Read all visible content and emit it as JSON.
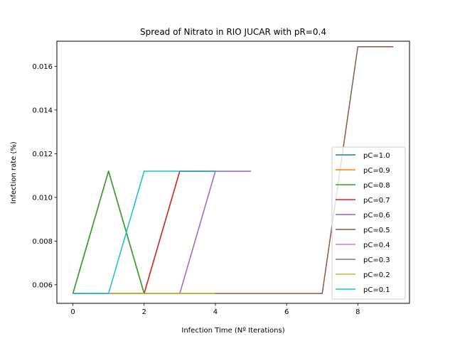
{
  "chart_data": {
    "type": "line",
    "title": "Spread of Nitrato in RIO JUCAR with pR=0.4",
    "xlabel": "Infection Time (Nº Iterations)",
    "ylabel": "Infection rate (%)",
    "xlim": [
      -0.45,
      9.45
    ],
    "ylim": [
      0.00515,
      0.01715
    ],
    "xticks": [
      0,
      2,
      4,
      6,
      8
    ],
    "yticks": [
      0.006,
      0.008,
      0.01,
      0.012,
      0.014,
      0.016
    ],
    "ytick_labels": [
      "0.006",
      "0.008",
      "0.010",
      "0.012",
      "0.014",
      "0.016"
    ],
    "grid": false,
    "legend_position": "lower-right",
    "series": [
      {
        "name": "pC=1.0",
        "color": "#1f77b4",
        "x": [
          0,
          1,
          2,
          3,
          4
        ],
        "y": [
          0.0056,
          0.0112,
          0.0056,
          0.0112,
          0.0112
        ]
      },
      {
        "name": "pC=0.9",
        "color": "#ff7f0e",
        "x": [
          0,
          1,
          2,
          3,
          4
        ],
        "y": [
          0.0056,
          0.0112,
          0.0056,
          0.0112,
          0.0112
        ]
      },
      {
        "name": "pC=0.8",
        "color": "#2ca02c",
        "x": [
          0,
          1,
          2
        ],
        "y": [
          0.0056,
          0.0112,
          0.0056
        ]
      },
      {
        "name": "pC=0.7",
        "color": "#d62728",
        "x": [
          0,
          1,
          2,
          3,
          4
        ],
        "y": [
          0.0056,
          0.0056,
          0.0056,
          0.0112,
          0.0112
        ]
      },
      {
        "name": "pC=0.6",
        "color": "#9467bd",
        "x": [
          0,
          1,
          2,
          3,
          4,
          5
        ],
        "y": [
          0.0056,
          0.0056,
          0.0056,
          0.0056,
          0.0112,
          0.0112
        ]
      },
      {
        "name": "pC=0.5",
        "color": "#8c564b",
        "x": [
          0,
          1,
          2,
          3,
          4,
          5,
          6,
          7,
          8,
          9
        ],
        "y": [
          0.0056,
          0.0056,
          0.0056,
          0.0056,
          0.0056,
          0.0056,
          0.0056,
          0.0056,
          0.0169,
          0.0169
        ]
      },
      {
        "name": "pC=0.4",
        "color": "#e377c2",
        "x": [
          0,
          1,
          2,
          3,
          4
        ],
        "y": [
          0.0056,
          0.0056,
          0.0056,
          0.0056,
          0.0056
        ]
      },
      {
        "name": "pC=0.3",
        "color": "#7f7f7f",
        "x": [
          0,
          1,
          2,
          3,
          4
        ],
        "y": [
          0.0056,
          0.0056,
          0.0056,
          0.0056,
          0.0056
        ]
      },
      {
        "name": "pC=0.2",
        "color": "#bcbd22",
        "x": [
          0,
          1,
          2,
          3,
          4
        ],
        "y": [
          0.0056,
          0.0056,
          0.0056,
          0.0056,
          0.0056
        ]
      },
      {
        "name": "pC=0.1",
        "color": "#17becf",
        "x": [
          0,
          1,
          2,
          3,
          4
        ],
        "y": [
          0.0056,
          0.0056,
          0.0112,
          0.0112,
          0.0112
        ]
      }
    ]
  }
}
